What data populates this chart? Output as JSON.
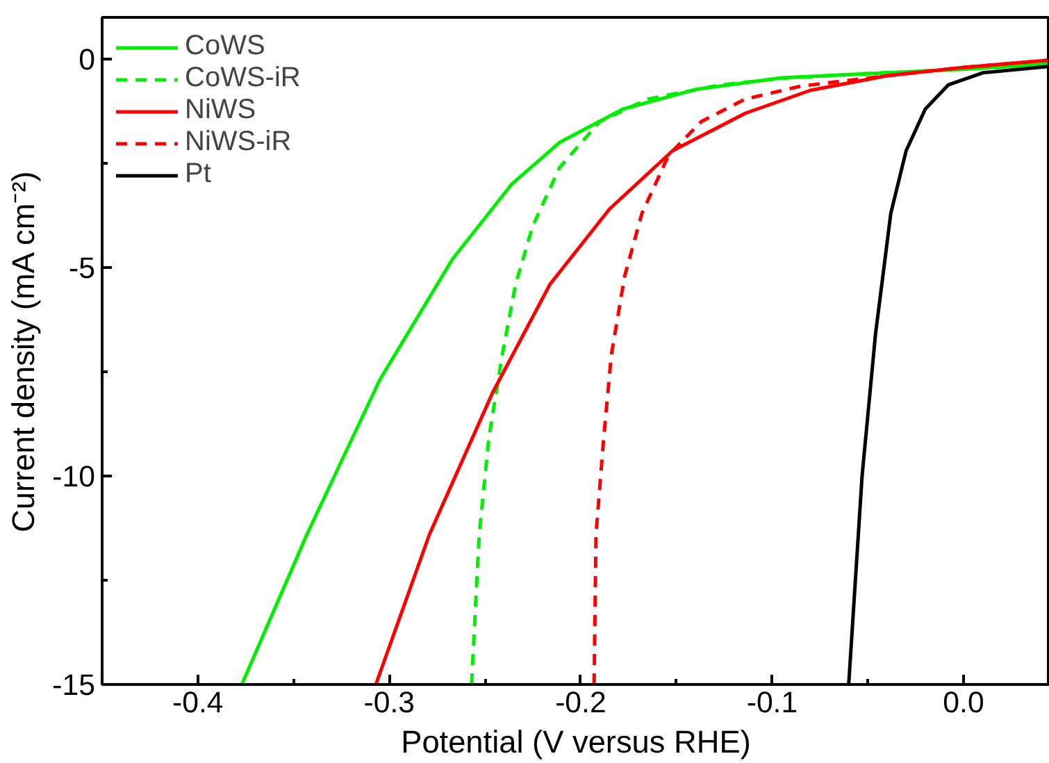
{
  "chart_data": {
    "type": "line",
    "xlabel": "Potential (V versus RHE)",
    "ylabel": "Current density (mA cm⁻²)",
    "xlim": [
      -0.45,
      0.045
    ],
    "ylim": [
      -15,
      1
    ],
    "xticks": [
      -0.4,
      -0.3,
      -0.2,
      -0.1,
      {
        "value": 0.0,
        "label": "0.0"
      },
      {
        "value": -0.35,
        "label": null
      },
      {
        "value": -0.25,
        "label": null
      },
      {
        "value": -0.15,
        "label": null
      },
      {
        "value": -0.05,
        "label": null
      },
      {
        "value": -0.45,
        "label": null
      }
    ],
    "yticks": [
      -15,
      -10,
      -5,
      0,
      {
        "value": -12.5,
        "label": null
      },
      {
        "value": -7.5,
        "label": null
      },
      {
        "value": -2.5,
        "label": null
      }
    ],
    "grid": false,
    "legend": "top left",
    "line_style": "solid",
    "marker": "none",
    "series": [
      {
        "name": "CoWS",
        "color": "#00ee00",
        "x": [
          -0.377,
          -0.343,
          -0.305,
          -0.267,
          -0.236,
          -0.211,
          -0.178,
          -0.14,
          -0.095,
          -0.05,
          -0.003,
          0.044
        ],
        "values": [
          -15,
          -11.4,
          -7.7,
          -4.8,
          -3.0,
          -2.0,
          -1.2,
          -0.73,
          -0.45,
          -0.35,
          -0.25,
          -0.12
        ]
      },
      {
        "name": "CoWS-iR",
        "color": "#00ee00",
        "line_style": "dashed",
        "x": [
          -0.257,
          -0.253,
          -0.248,
          -0.241,
          -0.234,
          -0.225,
          -0.211,
          -0.19,
          -0.165,
          -0.127,
          -0.092,
          -0.05,
          -0.003,
          0.044
        ],
        "values": [
          -15,
          -11.4,
          -9.1,
          -7.1,
          -5.4,
          -4.0,
          -2.6,
          -1.5,
          -0.96,
          -0.62,
          -0.45,
          -0.35,
          -0.25,
          -0.12
        ]
      },
      {
        "name": "NiWS",
        "color": "#ff0000",
        "x": [
          -0.307,
          -0.279,
          -0.246,
          -0.216,
          -0.185,
          -0.152,
          -0.114,
          -0.08,
          -0.04,
          0.0,
          0.044
        ],
        "values": [
          -15,
          -11.4,
          -8.0,
          -5.4,
          -3.6,
          -2.2,
          -1.3,
          -0.75,
          -0.4,
          -0.2,
          -0.03
        ]
      },
      {
        "name": "NiWS-iR",
        "color": "#ff0000",
        "line_style": "dashed",
        "x": [
          -0.193,
          -0.192,
          -0.188,
          -0.184,
          -0.177,
          -0.168,
          -0.154,
          -0.137,
          -0.114,
          -0.085,
          -0.04,
          0.0,
          0.044
        ],
        "values": [
          -15,
          -11.4,
          -9.1,
          -7.1,
          -5.2,
          -3.7,
          -2.3,
          -1.5,
          -0.96,
          -0.65,
          -0.4,
          -0.2,
          -0.03
        ]
      },
      {
        "name": "Pt",
        "color": "#000000",
        "x": [
          -0.06,
          -0.053,
          -0.046,
          -0.038,
          -0.03,
          -0.02,
          -0.008,
          0.01,
          0.044
        ],
        "values": [
          -15,
          -10.0,
          -6.6,
          -3.7,
          -2.2,
          -1.2,
          -0.62,
          -0.33,
          -0.18
        ]
      }
    ]
  }
}
